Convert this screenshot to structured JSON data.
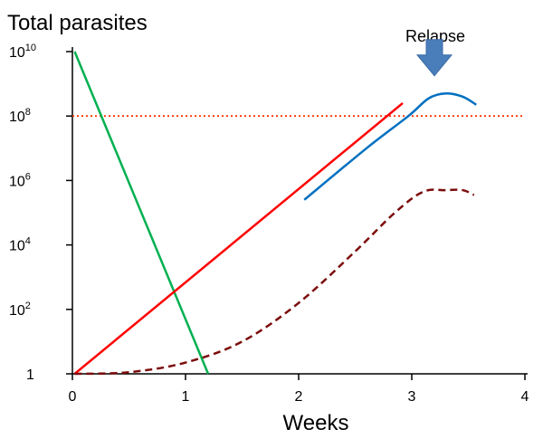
{
  "chart_data": {
    "type": "line",
    "ylabel": "Total parasites",
    "xlabel": "Weeks",
    "xlim": [
      0,
      4
    ],
    "y_scale": "log10",
    "ylim_exponent": [
      0,
      10
    ],
    "x_ticks": [
      {
        "value": 0,
        "label": "0"
      },
      {
        "value": 1,
        "label": "1"
      },
      {
        "value": 2,
        "label": "2"
      },
      {
        "value": 3,
        "label": "3"
      },
      {
        "value": 4,
        "label": "4"
      }
    ],
    "y_ticks": [
      {
        "exp": 0,
        "base": "1",
        "sup": ""
      },
      {
        "exp": 2,
        "base": "10",
        "sup": "2"
      },
      {
        "exp": 4,
        "base": "10",
        "sup": "4"
      },
      {
        "exp": 6,
        "base": "10",
        "sup": "6"
      },
      {
        "exp": 8,
        "base": "10",
        "sup": "8"
      },
      {
        "exp": 10,
        "base": "10",
        "sup": "10"
      }
    ],
    "threshold": {
      "y_exp": 8,
      "color": "#ff3300",
      "style": "dotted"
    },
    "series": [
      {
        "color": "#00b050",
        "style": "solid",
        "points": [
          [
            0.02,
            10.0
          ],
          [
            1.2,
            0.0
          ]
        ]
      },
      {
        "color": "#ff0000",
        "style": "solid",
        "points": [
          [
            0.02,
            0.0
          ],
          [
            2.92,
            8.4
          ]
        ]
      },
      {
        "color": "#0070c0",
        "style": "solid",
        "points": [
          [
            2.05,
            5.4
          ],
          [
            2.6,
            7.0
          ],
          [
            2.97,
            8.0
          ],
          [
            3.15,
            8.55
          ],
          [
            3.3,
            8.7
          ],
          [
            3.45,
            8.6
          ],
          [
            3.57,
            8.35
          ]
        ]
      },
      {
        "color": "#7b0c0c",
        "style": "dashed",
        "points": [
          [
            0.02,
            0.0
          ],
          [
            0.5,
            0.05
          ],
          [
            1.0,
            0.35
          ],
          [
            1.5,
            1.0
          ],
          [
            2.0,
            2.2
          ],
          [
            2.5,
            3.8
          ],
          [
            2.85,
            5.0
          ],
          [
            3.1,
            5.65
          ],
          [
            3.3,
            5.7
          ],
          [
            3.45,
            5.7
          ],
          [
            3.55,
            5.55
          ]
        ]
      }
    ],
    "annotations": [
      {
        "text": "Relapse",
        "x": 3.2,
        "y_exp": 9.25,
        "arrow": true,
        "arrow_color": "#4a7ebb"
      }
    ]
  }
}
